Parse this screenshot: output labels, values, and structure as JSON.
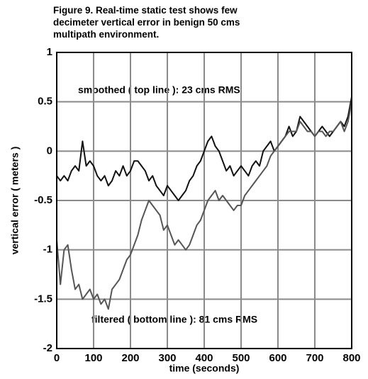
{
  "chart_data": {
    "type": "line",
    "title": "Figure 9.  Real-time static test shows few\ndecimeter vertical error in benign 50 cms\nmultipath environment.",
    "xlabel": "time (seconds)",
    "ylabel": "vertical error ( meters )",
    "annotations": [
      "smoothed ( top line ): 23 cms RMS",
      "filtered ( bottom line ): 81 cms RMS"
    ],
    "x": [
      0,
      10,
      20,
      30,
      40,
      50,
      60,
      70,
      80,
      90,
      100,
      110,
      120,
      130,
      140,
      150,
      160,
      170,
      180,
      190,
      200,
      210,
      220,
      230,
      240,
      250,
      260,
      270,
      280,
      290,
      300,
      310,
      320,
      330,
      340,
      350,
      360,
      370,
      380,
      390,
      400,
      410,
      420,
      430,
      440,
      450,
      460,
      470,
      480,
      490,
      500,
      510,
      520,
      530,
      540,
      550,
      560,
      570,
      580,
      590,
      600,
      610,
      620,
      630,
      640,
      650,
      660,
      670,
      680,
      690,
      700,
      710,
      720,
      730,
      740,
      750,
      760,
      770,
      780,
      790,
      800
    ],
    "series": [
      {
        "color": "#111111",
        "values": [
          -0.25,
          -0.3,
          -0.25,
          -0.3,
          -0.2,
          -0.15,
          -0.2,
          0.1,
          -0.15,
          -0.1,
          -0.15,
          -0.25,
          -0.3,
          -0.25,
          -0.35,
          -0.3,
          -0.2,
          -0.25,
          -0.15,
          -0.25,
          -0.2,
          -0.1,
          -0.1,
          -0.15,
          -0.2,
          -0.3,
          -0.25,
          -0.35,
          -0.4,
          -0.45,
          -0.35,
          -0.4,
          -0.45,
          -0.5,
          -0.45,
          -0.4,
          -0.3,
          -0.25,
          -0.15,
          -0.1,
          0.0,
          0.1,
          0.15,
          0.05,
          0.0,
          -0.1,
          -0.2,
          -0.15,
          -0.25,
          -0.2,
          -0.15,
          -0.2,
          -0.25,
          -0.15,
          -0.1,
          -0.15,
          0.0,
          0.05,
          0.1,
          0.0,
          0.05,
          0.1,
          0.15,
          0.25,
          0.15,
          0.2,
          0.35,
          0.3,
          0.25,
          0.2,
          0.15,
          0.2,
          0.25,
          0.2,
          0.15,
          0.2,
          0.25,
          0.3,
          0.25,
          0.35,
          0.55
        ]
      },
      {
        "color": "#555555",
        "values": [
          -0.9,
          -1.35,
          -1.0,
          -0.95,
          -1.2,
          -1.4,
          -1.35,
          -1.5,
          -1.45,
          -1.4,
          -1.5,
          -1.45,
          -1.55,
          -1.5,
          -1.6,
          -1.4,
          -1.35,
          -1.3,
          -1.2,
          -1.1,
          -1.05,
          -0.95,
          -0.85,
          -0.7,
          -0.6,
          -0.5,
          -0.55,
          -0.6,
          -0.65,
          -0.8,
          -0.75,
          -0.85,
          -0.95,
          -0.9,
          -0.95,
          -1.0,
          -0.95,
          -0.85,
          -0.75,
          -0.7,
          -0.6,
          -0.5,
          -0.45,
          -0.4,
          -0.5,
          -0.45,
          -0.5,
          -0.55,
          -0.6,
          -0.55,
          -0.55,
          -0.45,
          -0.4,
          -0.35,
          -0.3,
          -0.25,
          -0.2,
          -0.15,
          -0.05,
          0.0,
          0.05,
          0.1,
          0.15,
          0.2,
          0.2,
          0.2,
          0.3,
          0.25,
          0.2,
          0.2,
          0.15,
          0.2,
          0.2,
          0.15,
          0.2,
          0.2,
          0.25,
          0.3,
          0.2,
          0.3,
          0.5
        ]
      }
    ],
    "xlim": [
      0,
      800
    ],
    "xticks": [
      0,
      100,
      200,
      300,
      400,
      500,
      600,
      700,
      800
    ],
    "ylim": [
      -2,
      1
    ],
    "yticks": [
      -2,
      -1.5,
      -1,
      -0.5,
      0,
      0.5,
      1
    ],
    "grid": true
  }
}
